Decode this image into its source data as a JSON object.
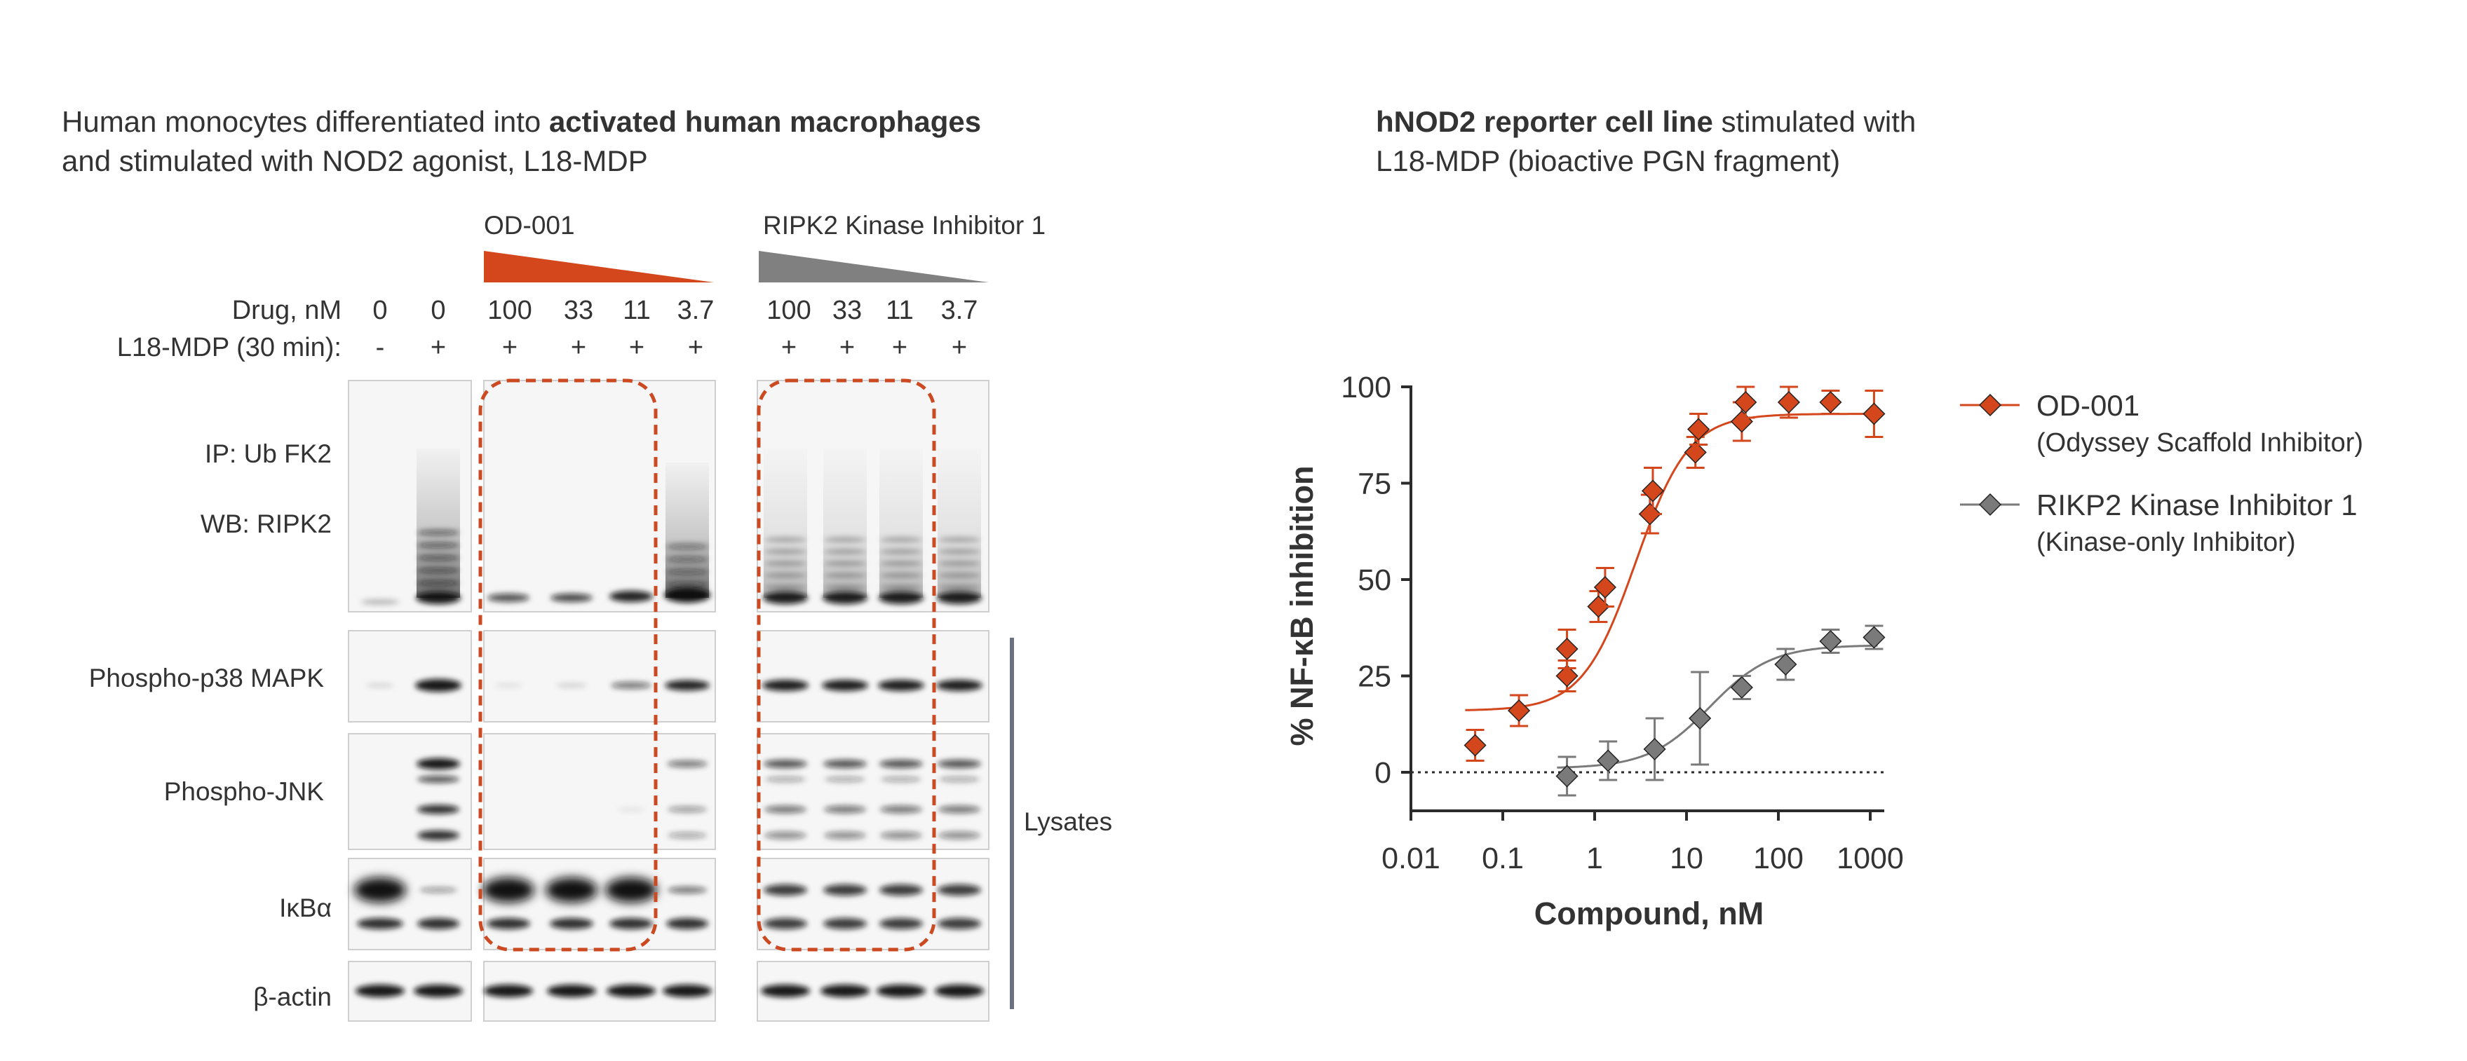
{
  "left_panel": {
    "title_part1": "Human monocytes differentiated into ",
    "title_bold": "activated human macrophages",
    "title_line2": "and stimulated with NOD2 agonist, L18-MDP",
    "group1_label": "OD-001",
    "group2_label": "RIPK2 Kinase Inhibitor 1",
    "drug_row_label": "Drug, nM",
    "mdp_row_label": "L18-MDP (30 min):",
    "drug_values": [
      "0",
      "0",
      "100",
      "33",
      "11",
      "3.7",
      "100",
      "33",
      "11",
      "3.7"
    ],
    "mdp_values": [
      "-",
      "+",
      "+",
      "+",
      "+",
      "+",
      "+",
      "+",
      "+",
      "+"
    ],
    "ip_label": "IP: Ub FK2",
    "wb_label": "WB: RIPK2",
    "blot_labels": [
      "Phospho-p38 MAPK",
      "Phospho-JNK",
      "IκBα",
      "β-actin"
    ],
    "lysates_label": "Lysates",
    "colors": {
      "od001": "#d4461c",
      "ripk2": "#808080",
      "highlight": "#cc4a22"
    }
  },
  "right_panel": {
    "title_bold": "hNOD2 reporter cell line",
    "title_rest": " stimulated with",
    "title_line2": "L18-MDP (bioactive PGN fragment)"
  },
  "chart_data": {
    "type": "scatter",
    "title": "",
    "xlabel": "Compound, nM",
    "ylabel": "% NF-κB inhibition",
    "xscale": "log",
    "xlim": [
      0.01,
      1000
    ],
    "ylim": [
      -10,
      100
    ],
    "xticks": [
      0.01,
      0.1,
      1,
      10,
      100,
      1000
    ],
    "xtick_labels": [
      "0.01",
      "0.1",
      "1",
      "10",
      "100",
      "1000"
    ],
    "yticks": [
      0,
      25,
      50,
      75,
      100
    ],
    "ytick_labels": [
      "0",
      "25",
      "50",
      "75",
      "100"
    ],
    "reference_line_y": 0,
    "series": [
      {
        "name": "OD-001",
        "subname": "(Odyssey Scaffold Inhibitor)",
        "color": "#d4461c",
        "x": [
          0.05,
          0.15,
          0.5,
          0.5,
          1.1,
          1.3,
          4.0,
          4.3,
          12.5,
          13.5,
          40,
          44,
          130,
          370,
          1100
        ],
        "y": [
          7,
          16,
          25,
          32,
          43,
          48,
          67,
          73,
          83,
          89,
          91,
          96,
          96,
          96,
          93
        ],
        "err": [
          4,
          4,
          4,
          5,
          4,
          5,
          5,
          6,
          4,
          4,
          5,
          4,
          4,
          3,
          6
        ],
        "fit": {
          "bottom": 16,
          "top": 93,
          "ec50": 2.8,
          "hill": 1.5
        }
      },
      {
        "name": "RIKP2 Kinase Inhibitor 1",
        "subname": "(Kinase-only Inhibitor)",
        "color": "#7a7a7a",
        "x": [
          0.5,
          1.4,
          4.5,
          14,
          40,
          120,
          370,
          1100
        ],
        "y": [
          -1,
          3,
          6,
          14,
          22,
          28,
          34,
          35
        ],
        "err": [
          5,
          5,
          8,
          12,
          3,
          4,
          3,
          3
        ],
        "fit": {
          "bottom": 1,
          "top": 33,
          "ec50": 18,
          "hill": 1.3
        }
      }
    ],
    "legend_position": "right"
  }
}
